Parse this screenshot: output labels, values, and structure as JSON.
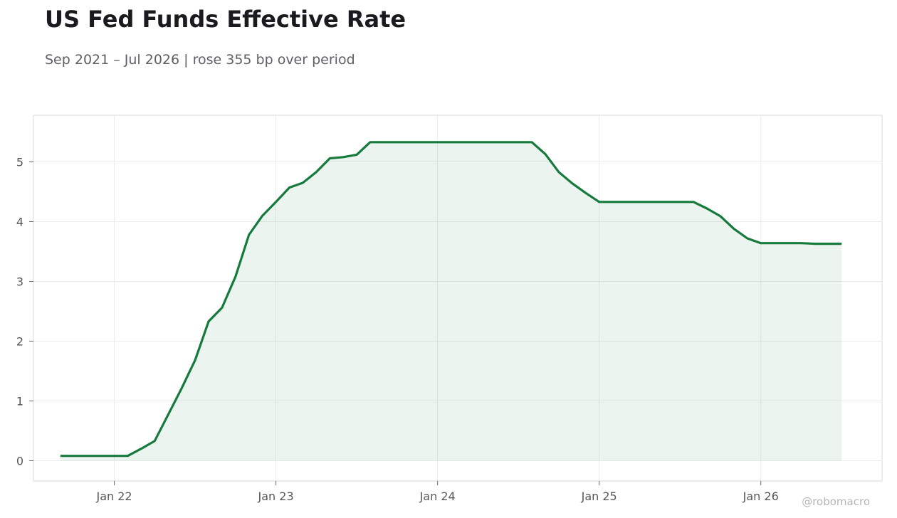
{
  "chart_data": {
    "type": "area",
    "title": "US Fed Funds Effective Rate",
    "subtitle": "Sep 2021 – Jul 2026 | rose 355 bp over period",
    "xlabel": "",
    "ylabel": "",
    "xlim": [
      "2021-07",
      "2026-10"
    ],
    "ylim": [
      -0.34,
      5.78
    ],
    "grid": true,
    "legend": "none",
    "y_ticks": [
      0,
      1,
      2,
      3,
      4,
      5
    ],
    "x_ticks": [
      {
        "date": "2022-01",
        "label": "Jan 22"
      },
      {
        "date": "2023-01",
        "label": "Jan 23"
      },
      {
        "date": "2024-01",
        "label": "Jan 24"
      },
      {
        "date": "2025-01",
        "label": "Jan 25"
      },
      {
        "date": "2026-01",
        "label": "Jan 26"
      }
    ],
    "series": [
      {
        "color": "#157a3c",
        "points": [
          [
            "2021-09",
            0.08
          ],
          [
            "2021-10",
            0.08
          ],
          [
            "2021-11",
            0.08
          ],
          [
            "2021-12",
            0.08
          ],
          [
            "2022-01",
            0.08
          ],
          [
            "2022-02",
            0.08
          ],
          [
            "2022-03",
            0.2
          ],
          [
            "2022-04",
            0.33
          ],
          [
            "2022-05",
            0.77
          ],
          [
            "2022-06",
            1.21
          ],
          [
            "2022-07",
            1.68
          ],
          [
            "2022-08",
            2.33
          ],
          [
            "2022-09",
            2.56
          ],
          [
            "2022-10",
            3.08
          ],
          [
            "2022-11",
            3.78
          ],
          [
            "2022-12",
            4.1
          ],
          [
            "2023-01",
            4.33
          ],
          [
            "2023-02",
            4.57
          ],
          [
            "2023-03",
            4.65
          ],
          [
            "2023-04",
            4.83
          ],
          [
            "2023-05",
            5.06
          ],
          [
            "2023-06",
            5.08
          ],
          [
            "2023-07",
            5.12
          ],
          [
            "2023-08",
            5.33
          ],
          [
            "2023-09",
            5.33
          ],
          [
            "2023-10",
            5.33
          ],
          [
            "2023-11",
            5.33
          ],
          [
            "2023-12",
            5.33
          ],
          [
            "2024-01",
            5.33
          ],
          [
            "2024-02",
            5.33
          ],
          [
            "2024-03",
            5.33
          ],
          [
            "2024-04",
            5.33
          ],
          [
            "2024-05",
            5.33
          ],
          [
            "2024-06",
            5.33
          ],
          [
            "2024-07",
            5.33
          ],
          [
            "2024-08",
            5.33
          ],
          [
            "2024-09",
            5.13
          ],
          [
            "2024-10",
            4.83
          ],
          [
            "2024-11",
            4.64
          ],
          [
            "2024-12",
            4.48
          ],
          [
            "2025-01",
            4.33
          ],
          [
            "2025-02",
            4.33
          ],
          [
            "2025-03",
            4.33
          ],
          [
            "2025-04",
            4.33
          ],
          [
            "2025-05",
            4.33
          ],
          [
            "2025-06",
            4.33
          ],
          [
            "2025-07",
            4.33
          ],
          [
            "2025-08",
            4.33
          ],
          [
            "2025-09",
            4.22
          ],
          [
            "2025-10",
            4.09
          ],
          [
            "2025-11",
            3.88
          ],
          [
            "2025-12",
            3.72
          ],
          [
            "2026-01",
            3.64
          ],
          [
            "2026-02",
            3.64
          ],
          [
            "2026-03",
            3.64
          ],
          [
            "2026-04",
            3.64
          ],
          [
            "2026-05",
            3.63
          ],
          [
            "2026-06",
            3.63
          ],
          [
            "2026-07",
            3.63
          ]
        ]
      }
    ]
  },
  "watermark": "@robomacro",
  "colors": {
    "line": "#157a3c",
    "fill": "#157a3c",
    "grid": "#ececee",
    "frame": "#d9d9dc",
    "text": "#55575c"
  }
}
